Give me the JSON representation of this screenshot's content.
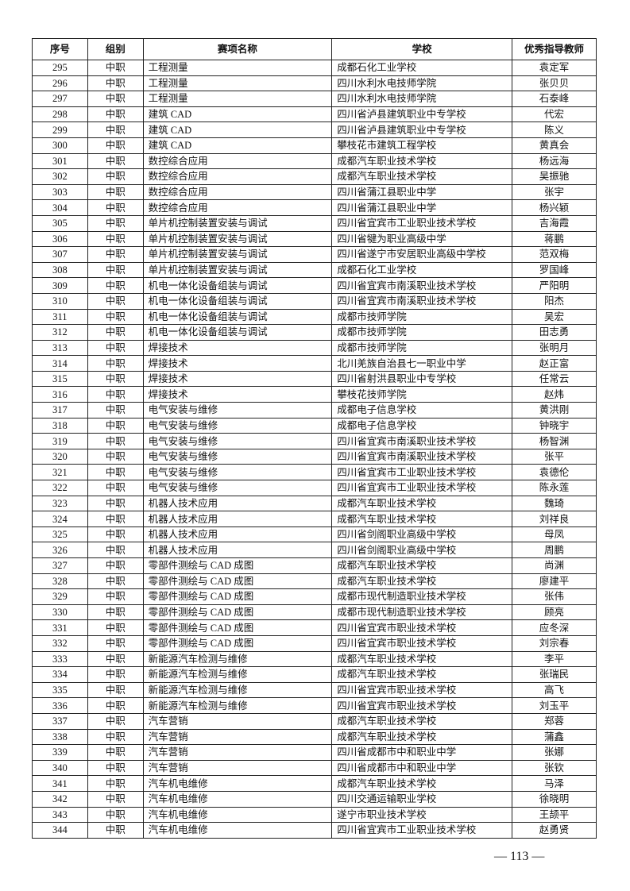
{
  "headers": [
    "序号",
    "组别",
    "赛项名称",
    "学校",
    "优秀指导教师"
  ],
  "rows": [
    [
      "295",
      "中职",
      "工程测量",
      "成都石化工业学校",
      "袁定军"
    ],
    [
      "296",
      "中职",
      "工程测量",
      "四川水利水电技师学院",
      "张贝贝"
    ],
    [
      "297",
      "中职",
      "工程测量",
      "四川水利水电技师学院",
      "石泰峰"
    ],
    [
      "298",
      "中职",
      "建筑 CAD",
      "四川省泸县建筑职业中专学校",
      "代宏"
    ],
    [
      "299",
      "中职",
      "建筑 CAD",
      "四川省泸县建筑职业中专学校",
      "陈义"
    ],
    [
      "300",
      "中职",
      "建筑 CAD",
      "攀枝花市建筑工程学校",
      "黄真会"
    ],
    [
      "301",
      "中职",
      "数控综合应用",
      "成都汽车职业技术学校",
      "杨远海"
    ],
    [
      "302",
      "中职",
      "数控综合应用",
      "成都汽车职业技术学校",
      "吴振驰"
    ],
    [
      "303",
      "中职",
      "数控综合应用",
      "四川省蒲江县职业中学",
      "张宇"
    ],
    [
      "304",
      "中职",
      "数控综合应用",
      "四川省蒲江县职业中学",
      "杨兴颖"
    ],
    [
      "305",
      "中职",
      "单片机控制装置安装与调试",
      "四川省宜宾市工业职业技术学校",
      "吉海霞"
    ],
    [
      "306",
      "中职",
      "单片机控制装置安装与调试",
      "四川省犍为职业高级中学",
      "蒋鹏"
    ],
    [
      "307",
      "中职",
      "单片机控制装置安装与调试",
      "四川省遂宁市安居职业高级中学校",
      "范双梅"
    ],
    [
      "308",
      "中职",
      "单片机控制装置安装与调试",
      "成都石化工业学校",
      "罗国峰"
    ],
    [
      "309",
      "中职",
      "机电一体化设备组装与调试",
      "四川省宜宾市南溪职业技术学校",
      "严阳明"
    ],
    [
      "310",
      "中职",
      "机电一体化设备组装与调试",
      "四川省宜宾市南溪职业技术学校",
      "阳杰"
    ],
    [
      "311",
      "中职",
      "机电一体化设备组装与调试",
      "成都市技师学院",
      "吴宏"
    ],
    [
      "312",
      "中职",
      "机电一体化设备组装与调试",
      "成都市技师学院",
      "田志勇"
    ],
    [
      "313",
      "中职",
      "焊接技术",
      "成都市技师学院",
      "张明月"
    ],
    [
      "314",
      "中职",
      "焊接技术",
      "北川羌族自治县七一职业中学",
      "赵正富"
    ],
    [
      "315",
      "中职",
      "焊接技术",
      "四川省射洪县职业中专学校",
      "任常云"
    ],
    [
      "316",
      "中职",
      "焊接技术",
      "攀枝花技师学院",
      "赵炜"
    ],
    [
      "317",
      "中职",
      "电气安装与维修",
      "成都电子信息学校",
      "黄洪刚"
    ],
    [
      "318",
      "中职",
      "电气安装与维修",
      "成都电子信息学校",
      "钟晓宇"
    ],
    [
      "319",
      "中职",
      "电气安装与维修",
      "四川省宜宾市南溪职业技术学校",
      "杨智渊"
    ],
    [
      "320",
      "中职",
      "电气安装与维修",
      "四川省宜宾市南溪职业技术学校",
      "张平"
    ],
    [
      "321",
      "中职",
      "电气安装与维修",
      "四川省宜宾市工业职业技术学校",
      "袁德伦"
    ],
    [
      "322",
      "中职",
      "电气安装与维修",
      "四川省宜宾市工业职业技术学校",
      "陈永莲"
    ],
    [
      "323",
      "中职",
      "机器人技术应用",
      "成都汽车职业技术学校",
      "魏琦"
    ],
    [
      "324",
      "中职",
      "机器人技术应用",
      "成都汽车职业技术学校",
      "刘祥良"
    ],
    [
      "325",
      "中职",
      "机器人技术应用",
      "四川省剑阁职业高级中学校",
      "母凤"
    ],
    [
      "326",
      "中职",
      "机器人技术应用",
      "四川省剑阁职业高级中学校",
      "周鹏"
    ],
    [
      "327",
      "中职",
      "零部件测绘与 CAD 成图",
      "成都汽车职业技术学校",
      "尚渊"
    ],
    [
      "328",
      "中职",
      "零部件测绘与 CAD 成图",
      "成都汽车职业技术学校",
      "廖建平"
    ],
    [
      "329",
      "中职",
      "零部件测绘与 CAD 成图",
      "成都市现代制造职业技术学校",
      "张伟"
    ],
    [
      "330",
      "中职",
      "零部件测绘与 CAD 成图",
      "成都市现代制造职业技术学校",
      "顾亮"
    ],
    [
      "331",
      "中职",
      "零部件测绘与 CAD 成图",
      "四川省宜宾市职业技术学校",
      "应冬深"
    ],
    [
      "332",
      "中职",
      "零部件测绘与 CAD 成图",
      "四川省宜宾市职业技术学校",
      "刘宗春"
    ],
    [
      "333",
      "中职",
      "新能源汽车检测与维修",
      "成都汽车职业技术学校",
      "李平"
    ],
    [
      "334",
      "中职",
      "新能源汽车检测与维修",
      "成都汽车职业技术学校",
      "张瑞民"
    ],
    [
      "335",
      "中职",
      "新能源汽车检测与维修",
      "四川省宜宾市职业技术学校",
      "高飞"
    ],
    [
      "336",
      "中职",
      "新能源汽车检测与维修",
      "四川省宜宾市职业技术学校",
      "刘玉平"
    ],
    [
      "337",
      "中职",
      "汽车营销",
      "成都汽车职业技术学校",
      "郑蓉"
    ],
    [
      "338",
      "中职",
      "汽车营销",
      "成都汽车职业技术学校",
      "蒲鑫"
    ],
    [
      "339",
      "中职",
      "汽车营销",
      "四川省成都市中和职业中学",
      "张娜"
    ],
    [
      "340",
      "中职",
      "汽车营销",
      "四川省成都市中和职业中学",
      "张钦"
    ],
    [
      "341",
      "中职",
      "汽车机电维修",
      "成都汽车职业技术学校",
      "马泽"
    ],
    [
      "342",
      "中职",
      "汽车机电维修",
      "四川交通运输职业学校",
      "徐晓明"
    ],
    [
      "343",
      "中职",
      "汽车机电维修",
      "遂宁市职业技术学校",
      "王颉平"
    ],
    [
      "344",
      "中职",
      "汽车机电维修",
      "四川省宜宾市工业职业技术学校",
      "赵勇贤"
    ]
  ],
  "page_number": "— 113 —"
}
